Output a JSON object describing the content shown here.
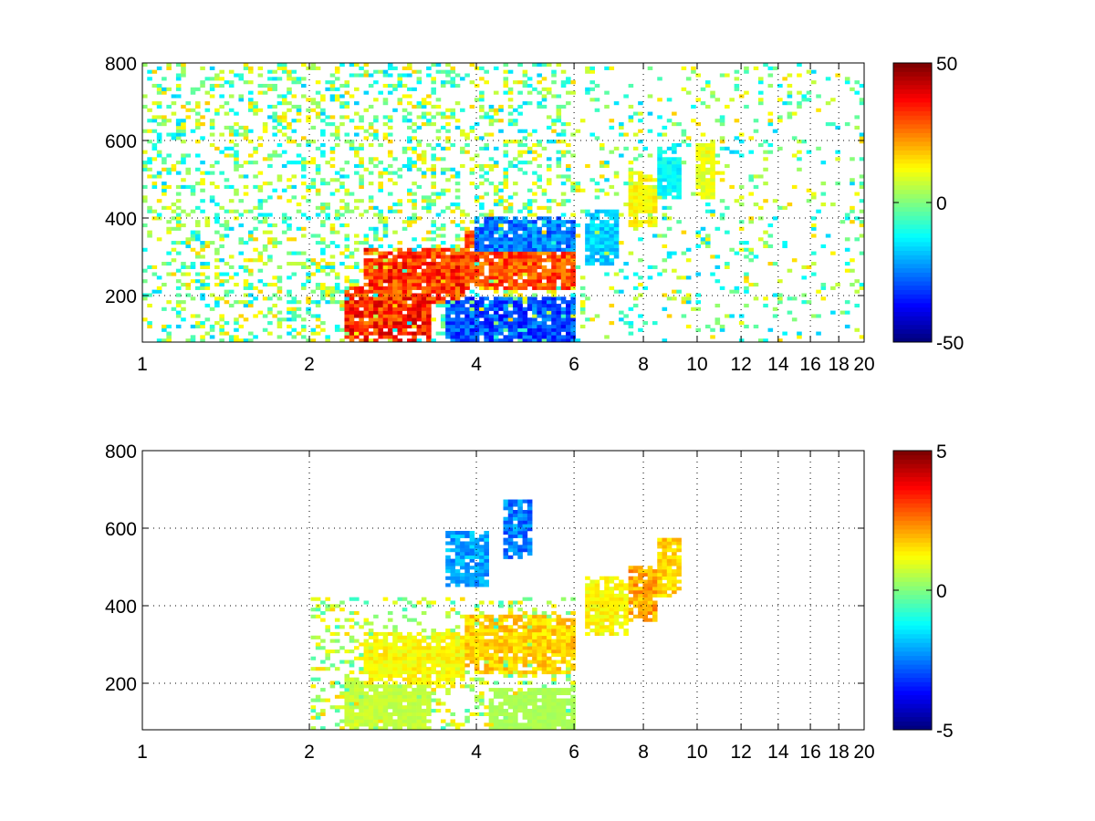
{
  "colors": {
    "background": "#ffffff",
    "axis": "#000000",
    "colormap": "jet"
  },
  "chart_data": [
    {
      "type": "heatmap",
      "title": "",
      "xlabel": "",
      "ylabel": "",
      "xlim": [
        1,
        20
      ],
      "ylim": [
        80,
        800
      ],
      "x_scale": "log",
      "x_ticks": [
        1,
        2,
        4,
        6,
        8,
        10,
        12,
        14,
        16,
        18,
        20
      ],
      "x_tick_labels": [
        "1",
        "2",
        "4",
        "6",
        "8",
        "10",
        "12",
        "14",
        "16",
        "18",
        "20"
      ],
      "y_ticks": [
        200,
        400,
        600,
        800
      ],
      "y_tick_labels": [
        "200",
        "400",
        "600",
        "800"
      ],
      "grid": true,
      "colorbar": {
        "min": -50,
        "max": 50,
        "tick_labels": [
          "50",
          "0",
          "-50"
        ],
        "tick_values": [
          50,
          0,
          -50
        ]
      },
      "features": [
        {
          "x": [
            2.5,
            3.8
          ],
          "y": 250,
          "value": 38
        },
        {
          "x": [
            3.8,
            6.0
          ],
          "y": 290,
          "value": 35
        },
        {
          "x": [
            4.0,
            6.0
          ],
          "y": 330,
          "value": -30
        },
        {
          "x": [
            2.3,
            3.3
          ],
          "y": 150,
          "value": 40
        },
        {
          "x": [
            3.5,
            6.0
          ],
          "y": 120,
          "value": -35
        },
        {
          "x": [
            6.3,
            7.2
          ],
          "y": 350,
          "value": -20
        },
        {
          "x": [
            7.5,
            8.5
          ],
          "y": 450,
          "value": 15
        },
        {
          "x": [
            8.5,
            9.4
          ],
          "y": 520,
          "value": -15
        },
        {
          "x": [
            10.0,
            10.7
          ],
          "y": 520,
          "value": 12
        }
      ]
    },
    {
      "type": "heatmap",
      "title": "",
      "xlabel": "",
      "ylabel": "",
      "xlim": [
        1,
        20
      ],
      "ylim": [
        80,
        800
      ],
      "x_scale": "log",
      "x_ticks": [
        1,
        2,
        4,
        6,
        8,
        10,
        12,
        14,
        16,
        18,
        20
      ],
      "x_tick_labels": [
        "1",
        "2",
        "4",
        "6",
        "8",
        "10",
        "12",
        "14",
        "16",
        "18",
        "20"
      ],
      "y_ticks": [
        200,
        400,
        600,
        800
      ],
      "y_tick_labels": [
        "200",
        "400",
        "600",
        "800"
      ],
      "grid": true,
      "colorbar": {
        "min": -5,
        "max": 5,
        "tick_labels": [
          "5",
          "0",
          "-5"
        ],
        "tick_values": [
          5,
          0,
          -5
        ]
      },
      "features": [
        {
          "x": [
            2.5,
            3.8
          ],
          "y": 260,
          "value": 1.5
        },
        {
          "x": [
            3.8,
            6.0
          ],
          "y": 300,
          "value": 2.0
        },
        {
          "x": [
            2.3,
            3.3
          ],
          "y": 140,
          "value": 0.8
        },
        {
          "x": [
            4.2,
            6.0
          ],
          "y": 115,
          "value": 0.5
        },
        {
          "x": [
            3.5,
            4.2
          ],
          "y": 520,
          "value": -2.5
        },
        {
          "x": [
            4.5,
            5.0
          ],
          "y": 600,
          "value": -3.0
        },
        {
          "x": [
            6.3,
            7.5
          ],
          "y": 400,
          "value": 1.5
        },
        {
          "x": [
            7.5,
            8.5
          ],
          "y": 430,
          "value": 2.5
        },
        {
          "x": [
            8.5,
            9.4
          ],
          "y": 500,
          "value": 2.0
        }
      ]
    }
  ]
}
